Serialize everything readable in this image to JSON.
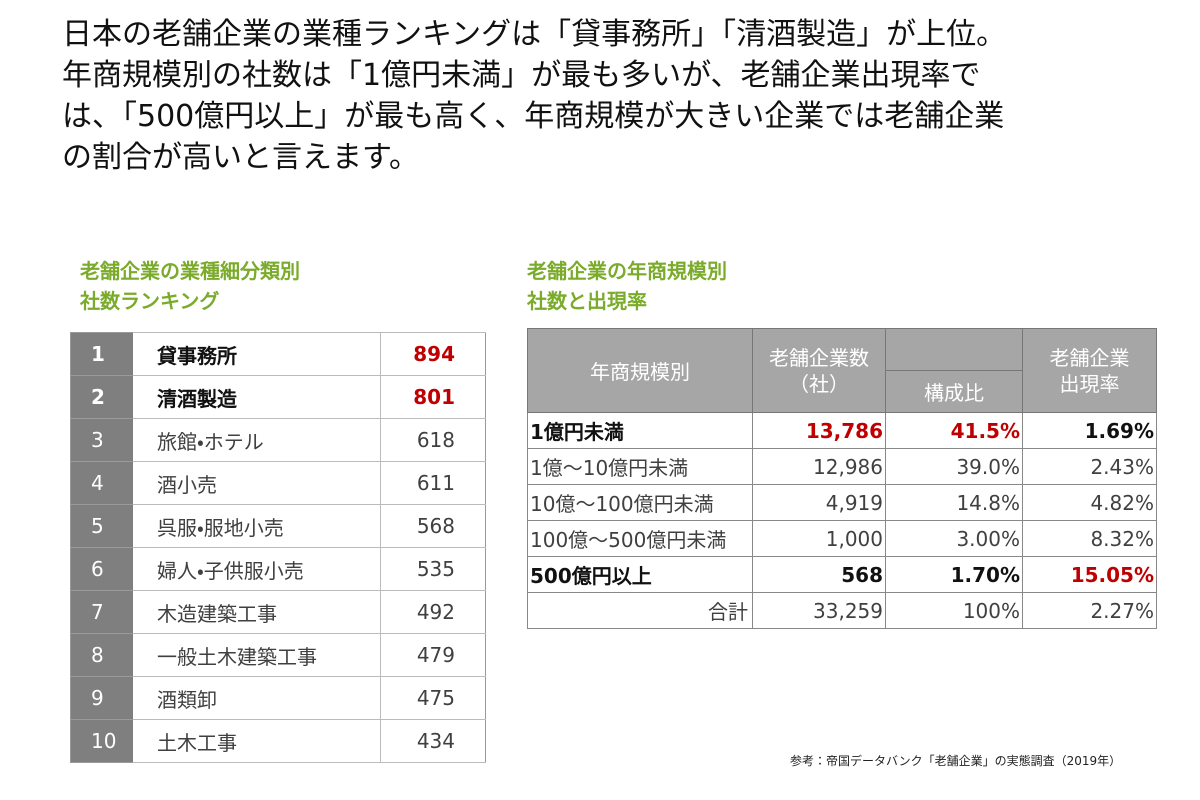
{
  "header": {
    "title_lines": [
      "日本の老舗企業の業種ランキングは「貸事務所」「清酒製造」が上位。",
      "年商規模別の社数は「1億円未満」が最も多いが、老舗企業出現率で",
      "は、「500億円以上」が最も高く、年商規模が大きい企業では老舗企業",
      "の割合が高いと言えます。"
    ]
  },
  "left_table": {
    "caption_lines": [
      "老舗企業の業種細分類別",
      "社数ランキング"
    ],
    "rows": [
      [
        "1",
        "貸事務所",
        "894"
      ],
      [
        "2",
        "清酒製造",
        "801"
      ],
      [
        "3",
        "旅館・ホテル",
        "618"
      ],
      [
        "4",
        "酒小売",
        "611"
      ],
      [
        "5",
        "呉服・服地小売",
        "568"
      ],
      [
        "6",
        "婦人・子供服小売",
        "535"
      ],
      [
        "7",
        "木造建築工事",
        "492"
      ],
      [
        "8",
        "一般土木建築工事",
        "479"
      ],
      [
        "9",
        "酒類卸",
        "475"
      ],
      [
        "10",
        "土木工事",
        "434"
      ]
    ]
  },
  "right_table": {
    "caption_lines": [
      "老舗企業の年商規模別",
      "社数と出現率"
    ],
    "header": {
      "scale": "年商規模別",
      "count_lines": [
        "老舗企業数",
        "（社）"
      ],
      "share": "構成比",
      "rate_lines": [
        "老舗企業",
        "出現率"
      ]
    },
    "rows": [
      [
        "1億円未満",
        "13,786",
        "41.5%",
        "1.69%"
      ],
      [
        "1億～10億円未満",
        "12,986",
        "39.0%",
        "2.43%"
      ],
      [
        "10億～100億円未満",
        "4,919",
        "14.8%",
        "4.82%"
      ],
      [
        "100億～500億円未満",
        "1,000",
        "3.00%",
        "8.32%"
      ],
      [
        "500億円以上",
        "568",
        "1.70%",
        "15.05%"
      ],
      [
        "合計",
        "33,259",
        "100%",
        "2.27%"
      ]
    ]
  },
  "footer": {
    "source": "参考：帝国データバンク「老舗企業」の実態調査（2019年）"
  }
}
